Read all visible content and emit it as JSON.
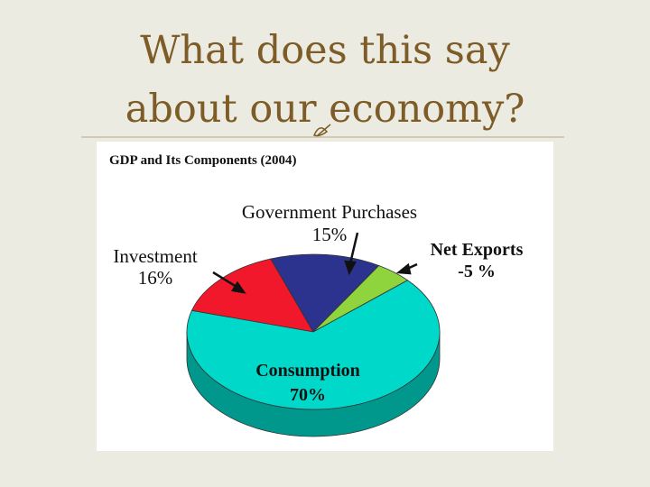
{
  "slide": {
    "title_lines": [
      "What does this say",
      "about our economy?"
    ]
  },
  "chart_data": {
    "type": "pie",
    "title": "GDP and Its Components (2004)",
    "categories": [
      "Consumption",
      "Investment",
      "Government Purchases",
      "Net Exports"
    ],
    "values": [
      70,
      16,
      15,
      -5
    ],
    "value_labels": [
      "70%",
      "16%",
      "15%",
      "-5 %"
    ],
    "colors": [
      "#00d8c9",
      "#f0182a",
      "#2b338f",
      "#8fd43c"
    ]
  }
}
